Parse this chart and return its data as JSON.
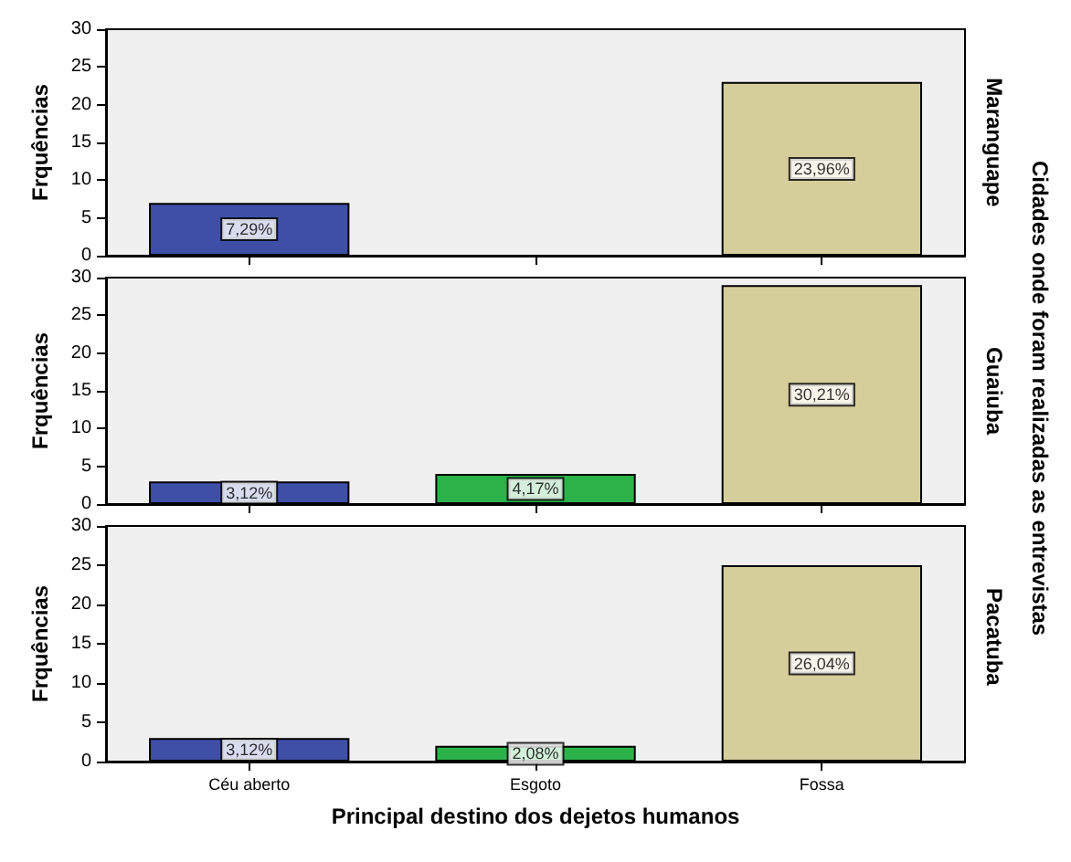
{
  "chart_data": [
    {
      "type": "bar",
      "ylabel": "Frquências",
      "categories": [
        "Céu aberto",
        "Esgoto",
        "Fossa"
      ],
      "values": [
        7,
        null,
        23
      ],
      "colors": [
        "#3f4fa8",
        "#2bb34a",
        "#d5ce9b"
      ],
      "ylim": [
        0,
        30
      ],
      "yticks": [
        0,
        5,
        10,
        15,
        20,
        25,
        30
      ],
      "tick_labels": "y",
      "annotations": [
        "Maranguape",
        "Cidades onde foram realizadas as entrevistas",
        {
          "text": "7,29%",
          "x": "Céu aberto",
          "y": 3.5
        },
        {
          "text": "23,96%",
          "x": "Fossa",
          "y": 11.5
        }
      ]
    },
    {
      "type": "bar",
      "ylabel": "Frquências",
      "categories": [
        "Céu aberto",
        "Esgoto",
        "Fossa"
      ],
      "values": [
        3,
        4,
        29
      ],
      "colors": [
        "#3f4fa8",
        "#2bb34a",
        "#d5ce9b"
      ],
      "ylim": [
        0,
        30
      ],
      "yticks": [
        0,
        5,
        10,
        15,
        20,
        25,
        30
      ],
      "tick_labels": "y",
      "annotations": [
        "Guaiuba",
        {
          "text": "3,12%",
          "x": "Céu aberto",
          "y": 1.5
        },
        {
          "text": "4,17%",
          "x": "Esgoto",
          "y": 2
        },
        {
          "text": "30,21%",
          "x": "Fossa",
          "y": 14.5
        }
      ]
    },
    {
      "type": "bar",
      "ylabel": "Frquências",
      "xlabel": "Principal destino dos dejetos humanos",
      "categories": [
        "Céu aberto",
        "Esgoto",
        "Fossa"
      ],
      "values": [
        3,
        2,
        25
      ],
      "colors": [
        "#3f4fa8",
        "#2bb34a",
        "#d5ce9b"
      ],
      "ylim": [
        0,
        30
      ],
      "yticks": [
        0,
        5,
        10,
        15,
        20,
        25,
        30
      ],
      "annotations": [
        "Pacatuba",
        {
          "text": "3,12%",
          "x": "Céu aberto",
          "y": 1.5
        },
        {
          "text": "2,08%",
          "x": "Esgoto",
          "y": 1
        },
        {
          "text": "26,04%",
          "x": "Fossa",
          "y": 12.5
        }
      ]
    }
  ]
}
